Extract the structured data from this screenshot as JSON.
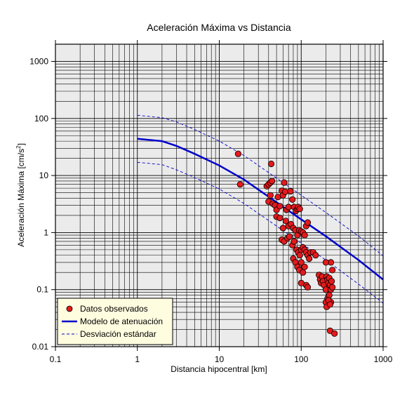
{
  "chart_data": {
    "type": "scatter",
    "title": "Aceleración Máxima vs Distancia",
    "xlabel": "Distancia hipocentral [km]",
    "ylabel_main": "Aceleración Máxima [cm/s",
    "ylabel_sup": "2",
    "ylabel_end": "]",
    "x_scale": "log",
    "y_scale": "log",
    "xlim": [
      0.1,
      1000
    ],
    "ylim": [
      0.01,
      2000
    ],
    "x_ticks": [
      0.1,
      1,
      10,
      100,
      1000
    ],
    "x_tick_labels": [
      "0.1",
      "1",
      "10",
      "100",
      "1000"
    ],
    "y_ticks": [
      0.01,
      0.1,
      1,
      10,
      100,
      1000
    ],
    "y_tick_labels": [
      "0.01",
      "0.1",
      "1",
      "10",
      "100",
      "1000"
    ],
    "grid": true,
    "background": "#ebebeb",
    "legend_position": "bottom-left",
    "series": [
      {
        "name": "Datos observados",
        "kind": "points",
        "color": "#e41a1c",
        "points": [
          [
            17,
            24
          ],
          [
            18,
            7
          ],
          [
            38,
            6.5
          ],
          [
            40,
            7
          ],
          [
            42,
            7.5
          ],
          [
            43,
            16
          ],
          [
            44,
            8
          ],
          [
            40,
            3.5
          ],
          [
            42,
            4.5
          ],
          [
            45,
            3.2
          ],
          [
            48,
            3
          ],
          [
            50,
            2.5
          ],
          [
            52,
            4.2
          ],
          [
            55,
            2.9
          ],
          [
            58,
            5.4
          ],
          [
            60,
            4.5
          ],
          [
            62,
            7.5
          ],
          [
            64,
            5.2
          ],
          [
            66,
            2.5
          ],
          [
            70,
            2.8
          ],
          [
            74,
            5.3
          ],
          [
            78,
            3.8
          ],
          [
            82,
            2.8
          ],
          [
            86,
            2.4
          ],
          [
            90,
            2.6
          ],
          [
            92,
            2.8
          ],
          [
            96,
            2.6
          ],
          [
            50,
            1.9
          ],
          [
            55,
            1.8
          ],
          [
            60,
            1.2
          ],
          [
            65,
            1.6
          ],
          [
            70,
            1.3
          ],
          [
            75,
            1.4
          ],
          [
            80,
            1.2
          ],
          [
            85,
            1.1
          ],
          [
            90,
            0.9
          ],
          [
            95,
            1.1
          ],
          [
            100,
            1.05
          ],
          [
            105,
            1
          ],
          [
            110,
            0.9
          ],
          [
            115,
            1.3
          ],
          [
            120,
            1.5
          ],
          [
            58,
            0.75
          ],
          [
            62,
            0.7
          ],
          [
            68,
            0.8
          ],
          [
            72,
            0.85
          ],
          [
            78,
            0.6
          ],
          [
            82,
            0.7
          ],
          [
            88,
            0.5
          ],
          [
            92,
            0.45
          ],
          [
            96,
            0.4
          ],
          [
            100,
            0.5
          ],
          [
            105,
            0.55
          ],
          [
            110,
            0.5
          ],
          [
            115,
            0.45
          ],
          [
            120,
            0.4
          ],
          [
            125,
            0.35
          ],
          [
            130,
            0.45
          ],
          [
            80,
            0.35
          ],
          [
            85,
            0.3
          ],
          [
            90,
            0.25
          ],
          [
            95,
            0.22
          ],
          [
            100,
            0.3
          ],
          [
            105,
            0.2
          ],
          [
            110,
            0.25
          ],
          [
            140,
            0.45
          ],
          [
            150,
            0.4
          ],
          [
            115,
            0.12
          ],
          [
            120,
            0.11
          ],
          [
            100,
            0.13
          ],
          [
            165,
            0.18
          ],
          [
            170,
            0.15
          ],
          [
            175,
            0.13
          ],
          [
            180,
            0.17
          ],
          [
            185,
            0.14
          ],
          [
            190,
            0.12
          ],
          [
            200,
            0.1
          ],
          [
            205,
            0.17
          ],
          [
            210,
            0.15
          ],
          [
            215,
            0.13
          ],
          [
            220,
            0.16
          ],
          [
            225,
            0.12
          ],
          [
            230,
            0.1
          ],
          [
            235,
            0.14
          ],
          [
            240,
            0.11
          ],
          [
            200,
            0.06
          ],
          [
            210,
            0.07
          ],
          [
            220,
            0.08
          ],
          [
            230,
            0.06
          ],
          [
            205,
            0.05
          ],
          [
            215,
            0.065
          ],
          [
            225,
            0.055
          ],
          [
            230,
            0.3
          ],
          [
            240,
            0.22
          ],
          [
            200,
            0.3
          ],
          [
            225,
            0.019
          ],
          [
            255,
            0.017
          ]
        ]
      },
      {
        "name": "Modelo de atenuación",
        "kind": "line",
        "color": "#0000cc",
        "points": [
          [
            1,
            44
          ],
          [
            2,
            40
          ],
          [
            3,
            33
          ],
          [
            5,
            24
          ],
          [
            10,
            15
          ],
          [
            20,
            8.5
          ],
          [
            50,
            3.4
          ],
          [
            100,
            1.7
          ],
          [
            200,
            0.86
          ],
          [
            500,
            0.33
          ],
          [
            1000,
            0.15
          ]
        ]
      },
      {
        "name": "Desviación estándar",
        "kind": "dashed",
        "color": "#0000cc",
        "upper": [
          [
            1,
            114
          ],
          [
            2,
            103
          ],
          [
            3,
            87
          ],
          [
            5,
            64
          ],
          [
            10,
            40
          ],
          [
            20,
            22.5
          ],
          [
            50,
            9
          ],
          [
            100,
            4.5
          ],
          [
            200,
            2.25
          ],
          [
            500,
            0.87
          ],
          [
            1000,
            0.39
          ]
        ],
        "lower": [
          [
            1,
            17
          ],
          [
            2,
            15.5
          ],
          [
            3,
            12.6
          ],
          [
            5,
            9.2
          ],
          [
            10,
            5.8
          ],
          [
            20,
            3.25
          ],
          [
            50,
            1.3
          ],
          [
            100,
            0.65
          ],
          [
            200,
            0.33
          ],
          [
            500,
            0.125
          ],
          [
            1000,
            0.058
          ]
        ]
      }
    ]
  }
}
